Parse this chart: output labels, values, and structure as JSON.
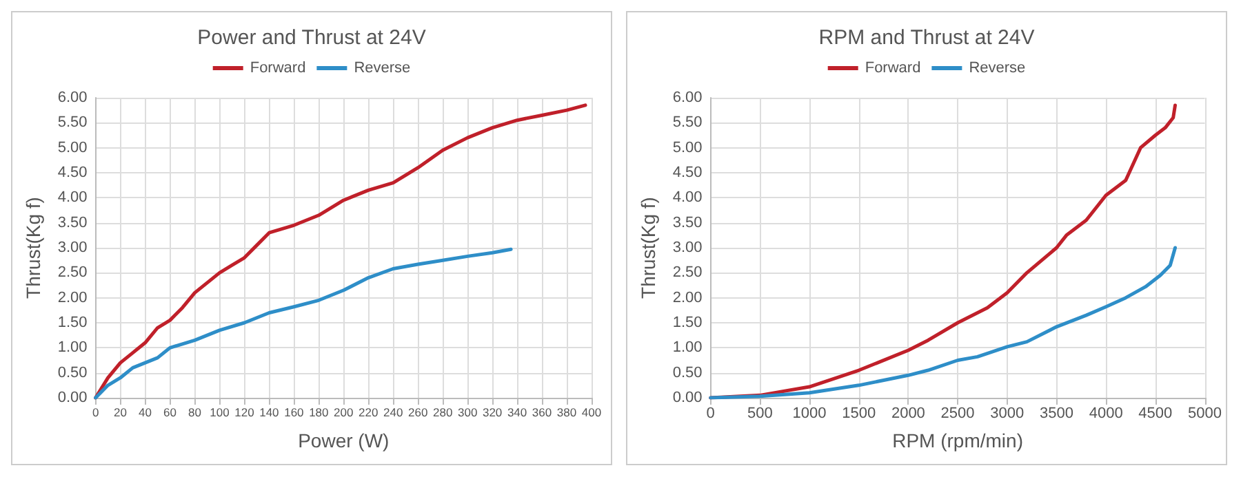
{
  "chart_data": [
    {
      "type": "line",
      "title": "Power and Thrust at 24V",
      "xlabel": "Power (W)",
      "ylabel": "Thrust(Kg f)",
      "legend": "top",
      "grid": true,
      "marker": "none",
      "line_style": "solid",
      "xlim": [
        0,
        400
      ],
      "xticks": [
        0,
        20,
        40,
        60,
        80,
        100,
        120,
        140,
        160,
        180,
        200,
        220,
        240,
        260,
        280,
        300,
        320,
        340,
        360,
        380,
        400
      ],
      "ylim": [
        0,
        6
      ],
      "yticks": [
        {
          "value": 0,
          "label": "0.00"
        },
        {
          "value": 0.5,
          "label": "0.50"
        },
        {
          "value": 1,
          "label": "1.00"
        },
        {
          "value": 1.5,
          "label": "1.50"
        },
        {
          "value": 2,
          "label": "2.00"
        },
        {
          "value": 2.5,
          "label": "2.50"
        },
        {
          "value": 3,
          "label": "3.00"
        },
        {
          "value": 3.5,
          "label": "3.50"
        },
        {
          "value": 4,
          "label": "4.00"
        },
        {
          "value": 4.5,
          "label": "4.50"
        },
        {
          "value": 5,
          "label": "5.00"
        },
        {
          "value": 5.5,
          "label": "5.50"
        },
        {
          "value": 6,
          "label": "6.00"
        }
      ],
      "series": [
        {
          "name": "Forward",
          "color": "#c0202a",
          "x": [
            0,
            10,
            20,
            30,
            40,
            50,
            60,
            70,
            80,
            90,
            100,
            110,
            120,
            130,
            140,
            160,
            180,
            200,
            220,
            240,
            260,
            280,
            300,
            320,
            340,
            360,
            380,
            395
          ],
          "values": [
            0,
            0.4,
            0.7,
            0.9,
            1.1,
            1.4,
            1.55,
            1.8,
            2.1,
            2.3,
            2.5,
            2.65,
            2.8,
            3.05,
            3.3,
            3.45,
            3.65,
            3.95,
            4.15,
            4.3,
            4.6,
            4.95,
            5.2,
            5.4,
            5.55,
            5.65,
            5.75,
            5.85
          ]
        },
        {
          "name": "Reverse",
          "color": "#2e8ec8",
          "x": [
            0,
            10,
            20,
            30,
            40,
            50,
            60,
            80,
            100,
            120,
            140,
            160,
            180,
            200,
            220,
            240,
            260,
            280,
            300,
            320,
            335
          ],
          "values": [
            0,
            0.25,
            0.4,
            0.6,
            0.7,
            0.8,
            1.0,
            1.15,
            1.35,
            1.5,
            1.7,
            1.82,
            1.95,
            2.15,
            2.4,
            2.58,
            2.67,
            2.75,
            2.83,
            2.9,
            2.97
          ]
        }
      ]
    },
    {
      "type": "line",
      "title": "RPM and Thrust at 24V",
      "xlabel": "RPM (rpm/min)",
      "ylabel": "Thrust(Kg f)",
      "legend": "top",
      "grid": true,
      "marker": "none",
      "line_style": "solid",
      "xlim": [
        0,
        5000
      ],
      "xticks": [
        0,
        500,
        1000,
        1500,
        2000,
        2500,
        3000,
        3500,
        4000,
        4500,
        5000
      ],
      "ylim": [
        0,
        6
      ],
      "yticks": [
        {
          "value": 0,
          "label": "0.00"
        },
        {
          "value": 0.5,
          "label": "0.50"
        },
        {
          "value": 1,
          "label": "1.00"
        },
        {
          "value": 1.5,
          "label": "1.50"
        },
        {
          "value": 2,
          "label": "2.00"
        },
        {
          "value": 2.5,
          "label": "2.50"
        },
        {
          "value": 3,
          "label": "3.00"
        },
        {
          "value": 3.5,
          "label": "3.50"
        },
        {
          "value": 4,
          "label": "4.00"
        },
        {
          "value": 4.5,
          "label": "4.50"
        },
        {
          "value": 5,
          "label": "5.00"
        },
        {
          "value": 5.5,
          "label": "5.50"
        },
        {
          "value": 6,
          "label": "6.00"
        }
      ],
      "series": [
        {
          "name": "Forward",
          "color": "#c0202a",
          "x": [
            0,
            500,
            1000,
            1500,
            2000,
            2200,
            2500,
            2800,
            3000,
            3200,
            3500,
            3600,
            3800,
            4000,
            4200,
            4350,
            4500,
            4600,
            4680,
            4700
          ],
          "values": [
            0,
            0.05,
            0.22,
            0.55,
            0.95,
            1.15,
            1.5,
            1.8,
            2.1,
            2.5,
            3.0,
            3.25,
            3.55,
            4.05,
            4.35,
            5.0,
            5.25,
            5.4,
            5.6,
            5.85
          ]
        },
        {
          "name": "Reverse",
          "color": "#2e8ec8",
          "x": [
            0,
            500,
            1000,
            1500,
            2000,
            2200,
            2500,
            2700,
            3000,
            3200,
            3500,
            3800,
            4000,
            4200,
            4400,
            4550,
            4650,
            4700
          ],
          "values": [
            0,
            0.03,
            0.1,
            0.25,
            0.45,
            0.55,
            0.75,
            0.82,
            1.02,
            1.12,
            1.42,
            1.65,
            1.82,
            2.0,
            2.22,
            2.45,
            2.65,
            3.0
          ]
        }
      ]
    }
  ]
}
